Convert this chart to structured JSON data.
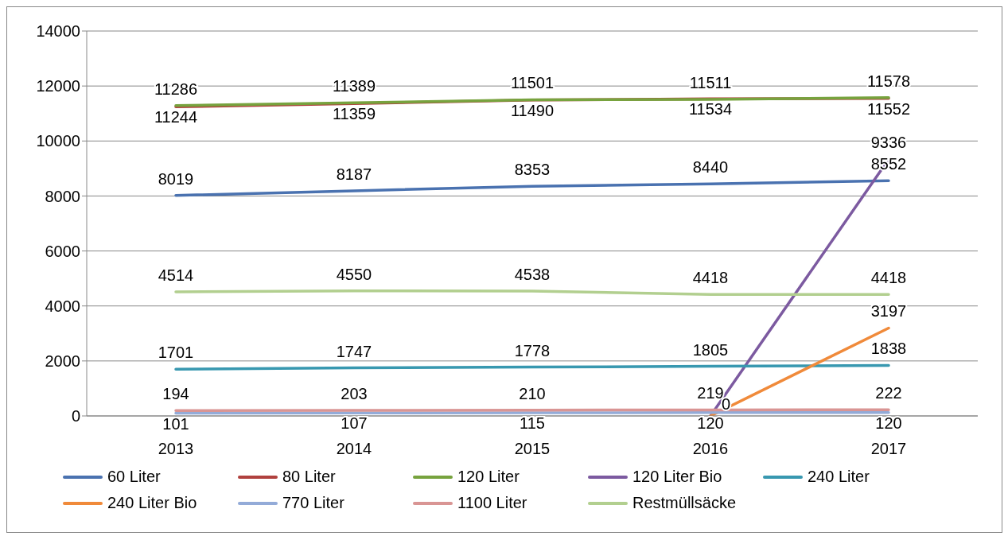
{
  "chart_data": {
    "type": "line",
    "categories": [
      "2013",
      "2014",
      "2015",
      "2016",
      "2017"
    ],
    "ylim": [
      0,
      14000
    ],
    "yticks": [
      0,
      2000,
      4000,
      6000,
      8000,
      10000,
      12000,
      14000
    ],
    "grid": "y",
    "legend": "bottom",
    "marker": "none",
    "line_style": "solid",
    "data_labels": true,
    "series": [
      {
        "name": "60 Liter",
        "color": "#4a72b0",
        "values": [
          8019,
          8187,
          8353,
          8440,
          8552
        ]
      },
      {
        "name": "80 Liter",
        "color": "#b0413e",
        "values": [
          11244,
          11359,
          11490,
          11534,
          11552
        ]
      },
      {
        "name": "120 Liter",
        "color": "#77a33e",
        "values": [
          11286,
          11389,
          11501,
          11511,
          11578
        ]
      },
      {
        "name": "120 Liter Bio",
        "color": "#7c5aa0",
        "values": [
          null,
          null,
          null,
          0,
          9336
        ],
        "value_labels": [
          null,
          null,
          null,
          null,
          "9336"
        ]
      },
      {
        "name": "240 Liter",
        "color": "#3898b0",
        "values": [
          1701,
          1747,
          1778,
          1805,
          1838
        ]
      },
      {
        "name": "240 Liter Bio",
        "color": "#f08a3a",
        "values": [
          null,
          null,
          null,
          0,
          3197
        ],
        "value_labels": [
          null,
          null,
          null,
          "0",
          "3197"
        ]
      },
      {
        "name": "770 Liter",
        "color": "#93abd8",
        "values": [
          101,
          107,
          115,
          120,
          120
        ]
      },
      {
        "name": "1100 Liter",
        "color": "#d99594",
        "values": [
          194,
          203,
          210,
          219,
          222
        ]
      },
      {
        "name": "Restmüllsäcke",
        "color": "#b2cf8f",
        "values": [
          4514,
          4550,
          4538,
          4418,
          4418
        ]
      }
    ]
  }
}
